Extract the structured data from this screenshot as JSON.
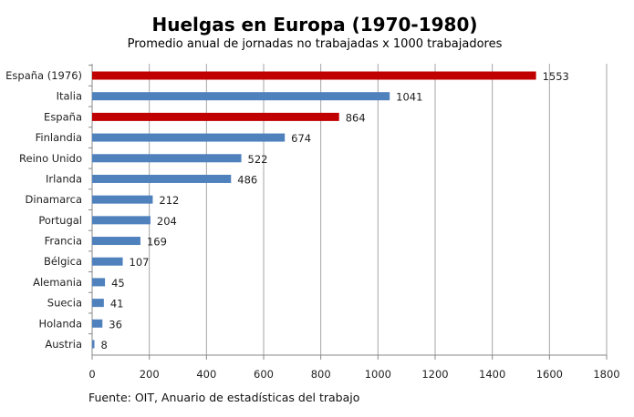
{
  "chart_data": {
    "type": "bar",
    "orientation": "horizontal",
    "title": "Huelgas en Europa (1970-1980)",
    "subtitle": "Promedio anual de jornadas no trabajadas x 1000 trabajadores",
    "source": "Fuente: OIT, Anuario de estadísticas del trabajo",
    "categories": [
      "España (1976)",
      "Italia",
      "España",
      "Finlandia",
      "Reino Unido",
      "Irlanda",
      "Dinamarca",
      "Portugal",
      "Francia",
      "Bélgica",
      "Alemania",
      "Suecia",
      "Holanda",
      "Austria"
    ],
    "values": [
      1553,
      1041,
      864,
      674,
      522,
      486,
      212,
      204,
      169,
      107,
      45,
      41,
      36,
      8
    ],
    "colors": [
      "#c00000",
      "#4f81bd",
      "#c00000",
      "#4f81bd",
      "#4f81bd",
      "#4f81bd",
      "#4f81bd",
      "#4f81bd",
      "#4f81bd",
      "#4f81bd",
      "#4f81bd",
      "#4f81bd",
      "#4f81bd",
      "#4f81bd"
    ],
    "xlim": [
      0,
      1800
    ],
    "xticks": [
      "0",
      "200",
      "400",
      "600",
      "800",
      "1000",
      "1200",
      "1400",
      "1600",
      "1800"
    ],
    "grid": true,
    "data_labels": true
  }
}
